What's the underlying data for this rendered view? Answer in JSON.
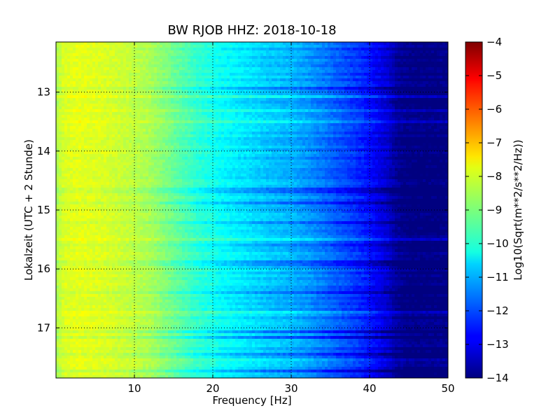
{
  "chart_data": {
    "type": "heatmap",
    "title": "BW RJOB HHZ: 2018-10-18",
    "xlabel": "Frequency [Hz]",
    "ylabel": "Lokalzeit (UTC + 2 Stunde)",
    "colorbar_label": "Log10(Sqrt(m**2/s**2/Hz))",
    "colormap": "jet",
    "xlim": [
      0,
      50
    ],
    "ylim": [
      12.15,
      17.85
    ],
    "y_inverted": true,
    "x_ticks": [
      {
        "value": 10,
        "label": "10"
      },
      {
        "value": 20,
        "label": "20"
      },
      {
        "value": 30,
        "label": "30"
      },
      {
        "value": 40,
        "label": "40"
      },
      {
        "value": 50,
        "label": "50"
      }
    ],
    "y_ticks": [
      {
        "value": 13,
        "label": "13"
      },
      {
        "value": 14,
        "label": "14"
      },
      {
        "value": 15,
        "label": "15"
      },
      {
        "value": 16,
        "label": "16"
      },
      {
        "value": 17,
        "label": "17"
      }
    ],
    "clim": [
      -14,
      -4
    ],
    "colorbar_ticks": [
      {
        "value": -4,
        "label": "−4"
      },
      {
        "value": -5,
        "label": "−5"
      },
      {
        "value": -6,
        "label": "−6"
      },
      {
        "value": -7,
        "label": "−7"
      },
      {
        "value": -8,
        "label": "−8"
      },
      {
        "value": -9,
        "label": "−9"
      },
      {
        "value": -10,
        "label": "−10"
      },
      {
        "value": -11,
        "label": "−11"
      },
      {
        "value": -12,
        "label": "−12"
      },
      {
        "value": -13,
        "label": "−13"
      },
      {
        "value": -14,
        "label": "−14"
      }
    ],
    "grid": true,
    "spectrum_profile": {
      "frequency_hz": [
        0,
        1,
        3,
        6,
        9,
        12,
        15,
        18,
        21,
        24,
        27,
        30,
        33,
        36,
        39,
        41,
        42.5,
        43.5,
        45,
        50
      ],
      "log10_amplitude": [
        -8.6,
        -8.1,
        -8.0,
        -8.1,
        -8.3,
        -8.6,
        -9.2,
        -9.8,
        -10.2,
        -10.5,
        -10.8,
        -11.0,
        -11.4,
        -11.9,
        -12.4,
        -12.9,
        -13.3,
        -13.8,
        -14.0,
        -14.0
      ]
    }
  }
}
